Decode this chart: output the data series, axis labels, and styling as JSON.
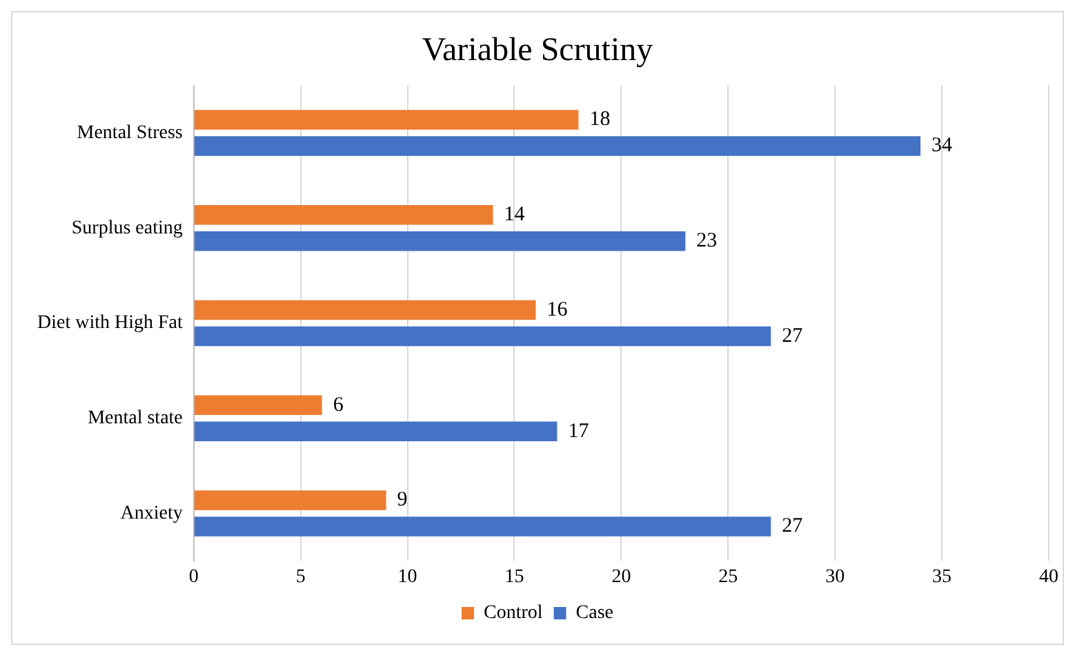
{
  "chart_data": {
    "type": "bar",
    "orientation": "horizontal",
    "title": "Variable Scrutiny",
    "categories": [
      "Mental Stress",
      "Surplus eating",
      "Diet with High Fat",
      "Mental state",
      "Anxiety"
    ],
    "series": [
      {
        "name": "Control",
        "color": "#ed7d31",
        "values": [
          18,
          14,
          16,
          6,
          9
        ]
      },
      {
        "name": "Case",
        "color": "#4472c4",
        "values": [
          34,
          23,
          27,
          17,
          27
        ]
      }
    ],
    "xlim": [
      0,
      40
    ],
    "xticks": [
      0,
      5,
      10,
      15,
      20,
      25,
      30,
      35,
      40
    ],
    "grid": "x",
    "legend": "bottom",
    "data_labels": true
  }
}
